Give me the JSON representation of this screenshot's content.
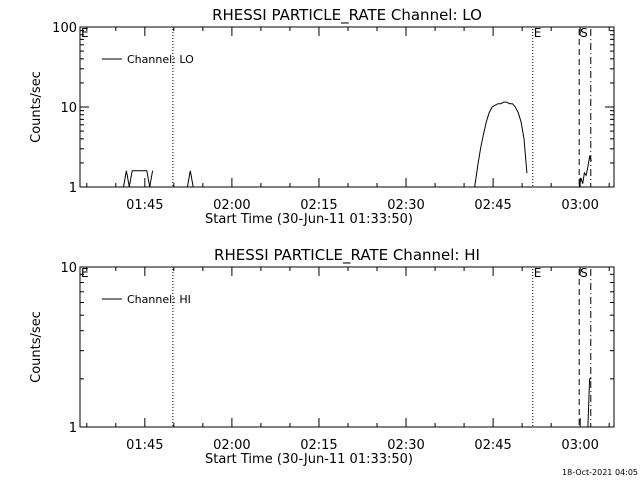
{
  "chart_data": [
    {
      "type": "line",
      "title": "RHESSI PARTICLE_RATE Channel: LO",
      "xlabel": "Start Time (30-Jun-11 01:33:50)",
      "ylabel": "Counts/sec",
      "y_scale": "log",
      "ylim": [
        1,
        100
      ],
      "xlim_minutes": [
        0,
        92
      ],
      "x_ticks": [
        "01:45",
        "02:00",
        "02:15",
        "02:30",
        "02:45",
        "03:00"
      ],
      "x_tick_minutes": [
        11.17,
        26.17,
        41.17,
        56.17,
        71.17,
        86.17
      ],
      "y_ticks": [
        "1",
        "10",
        "100"
      ],
      "y_tick_values": [
        1,
        10,
        100
      ],
      "legend": {
        "label": "Channel: LO",
        "placement": "top-left"
      },
      "markers": [
        {
          "label": "E",
          "minute": -1.5,
          "style": "none"
        },
        {
          "label": "",
          "minute": 16.0,
          "style": "dotted"
        },
        {
          "label": "E",
          "minute": 78.0,
          "style": "dotted"
        },
        {
          "label": "S",
          "minute": 86.0,
          "style": "dashed"
        },
        {
          "label": "",
          "minute": 88.0,
          "style": "dashdot"
        }
      ],
      "series": [
        {
          "segments": [
            {
              "x": [
                7.5,
                8.0,
                8.5,
                9.0,
                9.5,
                10.0,
                10.5,
                11.0,
                11.5,
                12.0,
                12.5
              ],
              "y": [
                1,
                1.6,
                1,
                1.6,
                1.6,
                1.6,
                1.6,
                1.6,
                1.6,
                1,
                1.6
              ]
            },
            {
              "x": [
                18.5,
                19.0,
                19.5
              ],
              "y": [
                1,
                1.6,
                1
              ]
            },
            {
              "x": [
                68.0,
                68.5,
                69.0,
                69.5,
                70.0,
                70.5,
                71.0,
                71.5,
                72.0,
                72.5,
                73.0,
                73.5,
                74.0,
                74.5,
                75.0,
                75.5,
                76.0,
                76.5,
                77.0
              ],
              "y": [
                1,
                1.8,
                3,
                4.5,
                6.5,
                8.5,
                10,
                10.5,
                11,
                11,
                11.5,
                11.5,
                11,
                11,
                10,
                8.5,
                6.5,
                4,
                1.5
              ]
            },
            {
              "x": [
                86.0,
                86.3,
                86.6,
                86.9,
                87.2,
                87.5,
                87.8,
                88.1
              ],
              "y": [
                1,
                1.3,
                1.1,
                1.5,
                1.4,
                1.8,
                2.4,
                2.1
              ]
            }
          ]
        }
      ]
    },
    {
      "type": "line",
      "title": "RHESSI PARTICLE_RATE Channel: HI",
      "xlabel": "Start Time (30-Jun-11 01:33:50)",
      "ylabel": "Counts/sec",
      "y_scale": "log",
      "ylim": [
        1,
        10
      ],
      "xlim_minutes": [
        0,
        92
      ],
      "x_ticks": [
        "01:45",
        "02:00",
        "02:15",
        "02:30",
        "02:45",
        "03:00"
      ],
      "x_tick_minutes": [
        11.17,
        26.17,
        41.17,
        56.17,
        71.17,
        86.17
      ],
      "y_ticks": [
        "1",
        "10"
      ],
      "y_tick_values": [
        1,
        10
      ],
      "legend": {
        "label": "Channel: HI",
        "placement": "top-left"
      },
      "markers": [
        {
          "label": "E",
          "minute": -1.5,
          "style": "none"
        },
        {
          "label": "",
          "minute": 16.0,
          "style": "dotted"
        },
        {
          "label": "E",
          "minute": 78.0,
          "style": "dotted"
        },
        {
          "label": "S",
          "minute": 86.0,
          "style": "dashed"
        },
        {
          "label": "",
          "minute": 88.0,
          "style": "dashdot"
        }
      ],
      "series": [
        {
          "segments": [
            {
              "x": [
                87.5,
                87.8,
                88.1
              ],
              "y": [
                1,
                2,
                2
              ]
            }
          ]
        }
      ]
    }
  ],
  "footer": {
    "timestamp": "18-Oct-2021 04:05"
  }
}
